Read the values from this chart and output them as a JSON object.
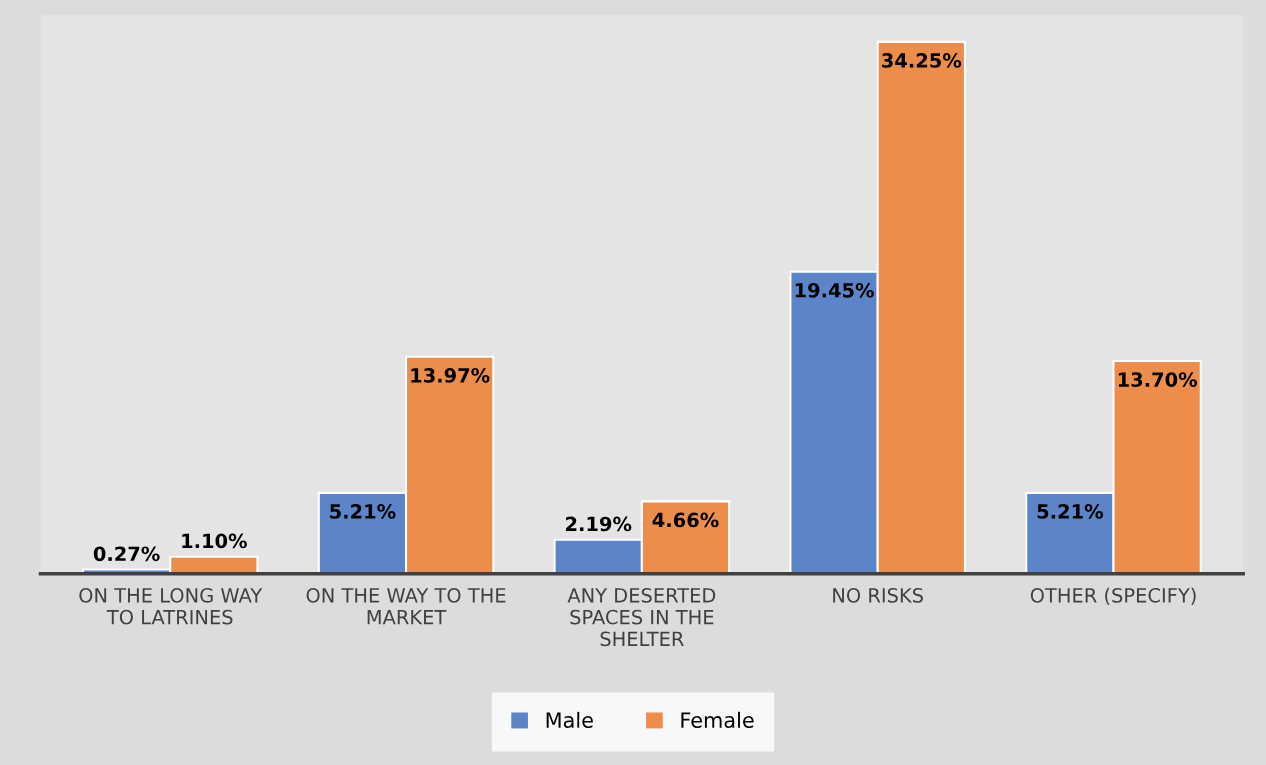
{
  "chart_data": {
    "type": "bar",
    "categories": [
      "ON THE LONG WAY\nTO LATRINES",
      "ON THE WAY TO THE\nMARKET",
      "ANY DESERTED\nSPACES IN THE\nSHELTER",
      "NO RISKS",
      "OTHER (SPECIFY)"
    ],
    "series": [
      {
        "name": "Male",
        "color": "#5b84c9",
        "values": [
          0.27,
          5.21,
          2.19,
          19.45,
          5.21
        ],
        "value_labels": [
          "0.27%",
          "5.21%",
          "2.19%",
          "19.45%",
          "5.21%"
        ]
      },
      {
        "name": "Female",
        "color": "#ec8d4b",
        "values": [
          1.1,
          13.97,
          4.66,
          34.25,
          13.7
        ],
        "value_labels": [
          "1.10%",
          "13.97%",
          "4.66%",
          "34.25%",
          "13.70%"
        ]
      }
    ],
    "legend": "bottom",
    "grid": false
  }
}
